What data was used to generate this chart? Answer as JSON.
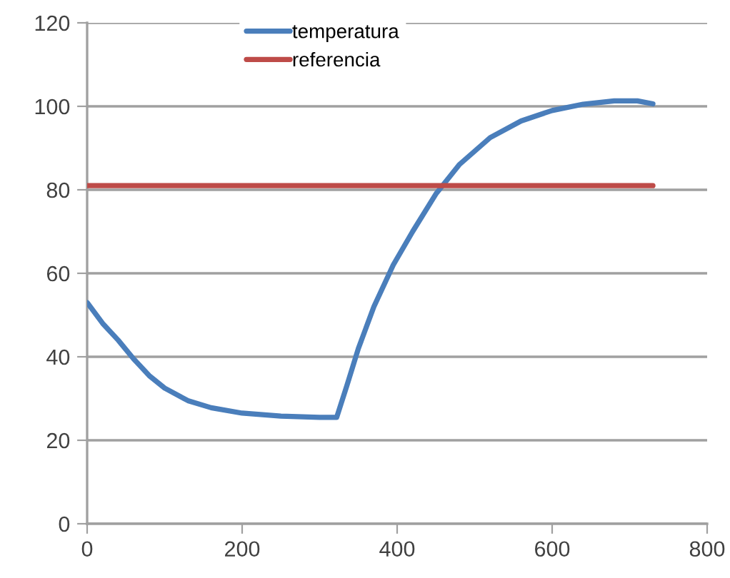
{
  "chart_data": {
    "type": "line",
    "xlim": [
      0,
      800
    ],
    "xticks": [
      0,
      200,
      400,
      600,
      800
    ],
    "ylim": [
      0,
      120
    ],
    "yticks": [
      0,
      20,
      40,
      60,
      80,
      100,
      120
    ],
    "grid": "y",
    "legend": "top",
    "marker": "none",
    "line_style": "solid",
    "series": [
      {
        "name": "temperatura",
        "color": "#4a7ebb",
        "x": [
          0,
          20,
          40,
          60,
          80,
          100,
          130,
          160,
          200,
          250,
          300,
          322,
          335,
          350,
          370,
          395,
          420,
          450,
          480,
          520,
          560,
          600,
          640,
          680,
          710,
          730
        ],
        "values": [
          53,
          48,
          44,
          39.5,
          35.5,
          32.5,
          29.5,
          27.8,
          26.5,
          25.8,
          25.5,
          25.5,
          33,
          42,
          52,
          62,
          70,
          79,
          86,
          92.5,
          96.5,
          99,
          100.5,
          101.3,
          101.3,
          100.6
        ]
      },
      {
        "name": "referencia",
        "color": "#be4b48",
        "x": [
          0,
          730
        ],
        "values": [
          81,
          81
        ]
      }
    ]
  }
}
